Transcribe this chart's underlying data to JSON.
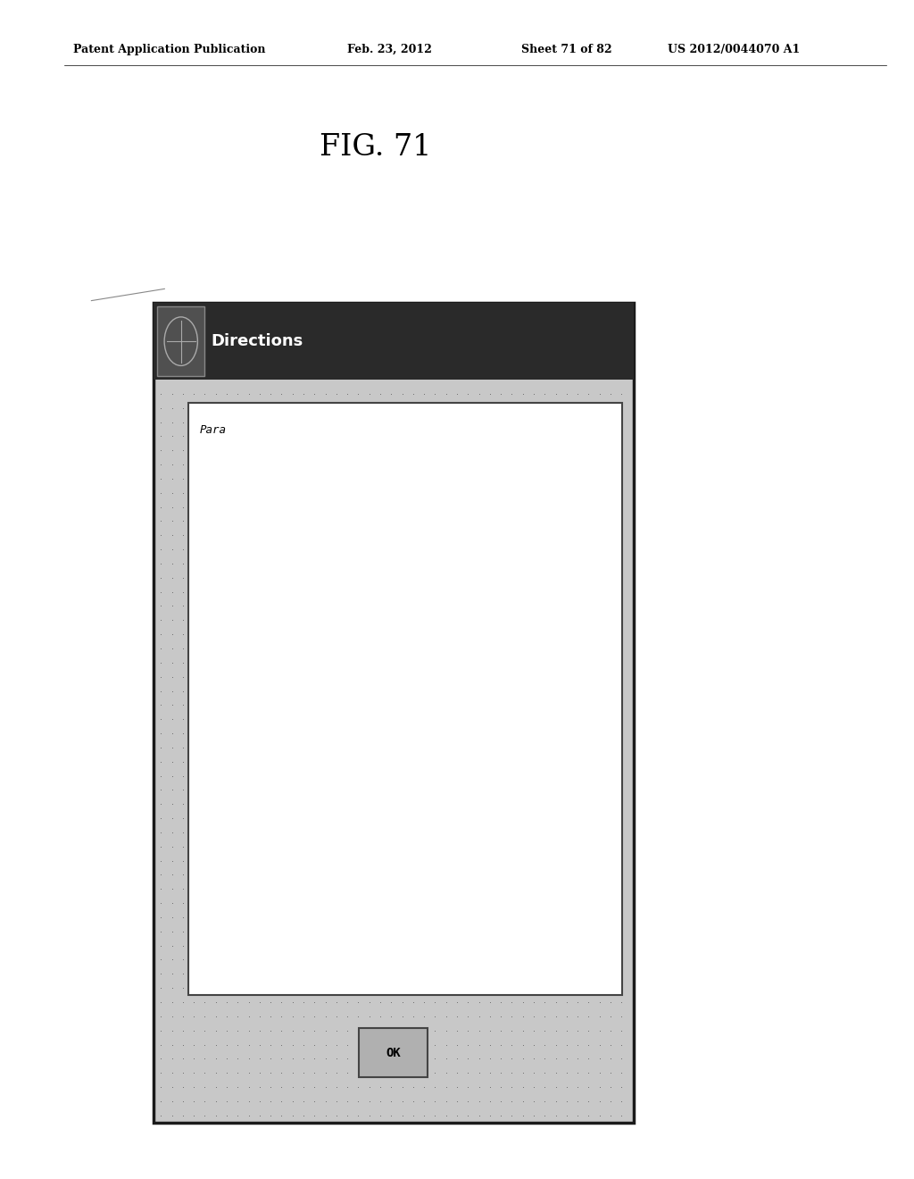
{
  "bg_color": "#ffffff",
  "header_text": "Patent Application Publication",
  "header_date": "Feb. 23, 2012",
  "header_sheet": "Sheet 71 of 82",
  "header_patent": "US 2012/0044070 A1",
  "fig_label": "FIG. 71",
  "dialog_title": "Directions",
  "dialog_text_area_label": "Para",
  "ok_button_label": "OK",
  "title_bar_color": "#2a2a2a",
  "title_bar_text_color": "#ffffff",
  "dotted_bg_color": "#c8c8c8",
  "text_area_bg": "#ffffff",
  "button_bg": "#b0b0b0"
}
